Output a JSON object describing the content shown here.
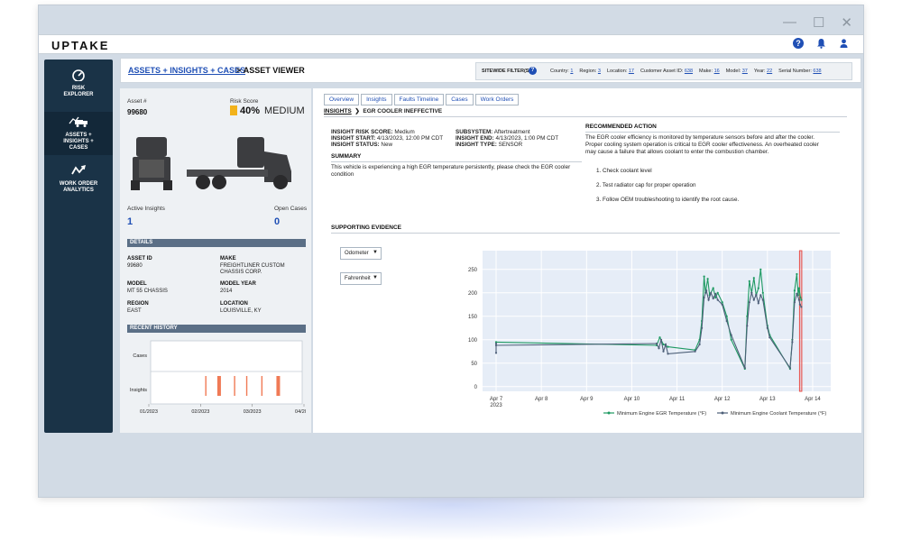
{
  "window": {
    "controls": [
      "—",
      "☐",
      "✕"
    ]
  },
  "topbar": {
    "logo": "UPTAKE",
    "icons": [
      "help-icon",
      "bell-icon",
      "user-icon"
    ]
  },
  "sidebar": {
    "items": [
      {
        "label_line1": "RISK",
        "label_line2": "EXPLORER",
        "label_line3": "",
        "icon": "gauge-icon",
        "active": false
      },
      {
        "label_line1": "ASSETS +",
        "label_line2": "INSIGHTS +",
        "label_line3": "CASES",
        "icon": "truck-icon",
        "active": true
      },
      {
        "label_line1": "WORK ORDER",
        "label_line2": "ANALYTICS",
        "label_line3": "",
        "icon": "trend-icon",
        "active": false
      }
    ]
  },
  "breadcrumb": {
    "link": "ASSETS + INSIGHTS + CASES",
    "separator": ">",
    "current": "ASSET VIEWER"
  },
  "filters": {
    "label": "SITEWIDE FILTER(S)",
    "items": [
      {
        "name": "Country:",
        "value": "1"
      },
      {
        "name": "Region:",
        "value": "3"
      },
      {
        "name": "Location:",
        "value": "17"
      },
      {
        "name": "Customer Asset ID:",
        "value": "638"
      },
      {
        "name": "Make:",
        "value": "16"
      },
      {
        "name": "Model:",
        "value": "37"
      },
      {
        "name": "Year:",
        "value": "22"
      },
      {
        "name": "Serial Number:",
        "value": "638"
      }
    ]
  },
  "asset": {
    "asset_label": "Asset #",
    "asset_number": "99680",
    "risk_label": "Risk Score",
    "risk_pct": "40%",
    "risk_level": "MEDIUM",
    "risk_color": "#f2b21b",
    "active_insights_label": "Active Insights",
    "active_insights": "1",
    "open_cases_label": "Open Cases",
    "open_cases": "0"
  },
  "details": {
    "header": "DETAILS",
    "asset_id_label": "ASSET ID",
    "asset_id": "99680",
    "make_label": "MAKE",
    "make_line1": "FREIGHTLINER CUSTOM",
    "make_line2": "CHASSIS CORP.",
    "model_label": "MODEL",
    "model": "MT 55 CHASSIS",
    "year_label": "MODEL YEAR",
    "year": "2014",
    "region_label": "REGION",
    "region": "EAST",
    "location_label": "LOCATION",
    "location": "LOUISVILLE, KY"
  },
  "history": {
    "header": "RECENT HISTORY",
    "row_labels": [
      "Cases",
      "Insights"
    ],
    "x_ticks": [
      "01/2023",
      "02/2023",
      "03/2023",
      "04/2023"
    ],
    "insight_marks": [
      {
        "t": 0.36,
        "bold": false
      },
      {
        "t": 0.44,
        "bold": true
      },
      {
        "t": 0.55,
        "bold": false
      },
      {
        "t": 0.63,
        "bold": false
      },
      {
        "t": 0.73,
        "bold": false
      },
      {
        "t": 0.83,
        "bold": true
      }
    ],
    "mark_color": "#f07a55"
  },
  "tabs": [
    "Overview",
    "Insights",
    "Faults Timeline",
    "Cases",
    "Work Orders"
  ],
  "insight_breadcrumb": {
    "link": "INSIGHTS",
    "current": "EGR COOLER INEFFECTIVE"
  },
  "insight": {
    "risk_label": "INSIGHT RISK SCORE:",
    "risk": "Medium",
    "start_label": "INSIGHT START:",
    "start": "4/13/2023, 12:00 PM CDT",
    "status_label": "INSIGHT STATUS:",
    "status": "New",
    "subsystem_label": "SUBSYSTEM:",
    "subsystem": "Aftertreatment",
    "end_label": "INSIGHT END:",
    "end": "4/13/2023, 1:00 PM CDT",
    "type_label": "INSIGHT TYPE:",
    "type": "SENSOR"
  },
  "summary": {
    "title": "SUMMARY",
    "line1": "This vehicle is experiencing a high EGR temperature persistently, please check the EGR cooler",
    "line2": "condition"
  },
  "recommended": {
    "title": "RECOMMENDED ACTION",
    "line1": "The EGR cooler efficiency is monitored by temperature sensors before and after the cooler.",
    "line2": "Proper cooling system operation is critical to EGR cooler effectiveness. An overheated cooler",
    "line3": "may cause a failure that allows coolant to enter the combustion chamber.",
    "steps": [
      "1. Check coolant level",
      "2. Test radiator cap for proper operation",
      "3. Follow OEM troubleshooting to identify the root cause."
    ]
  },
  "evidence": {
    "title": "SUPPORTING EVIDENCE",
    "select1": "Odometer",
    "select2": "Fahrenheit"
  },
  "chart_data": {
    "type": "line",
    "x_ticks": [
      "Apr 7",
      "Apr 8",
      "Apr 9",
      "Apr 10",
      "Apr 11",
      "Apr 12",
      "Apr 13",
      "Apr 14"
    ],
    "x_tick_sub": "2023",
    "xlim": [
      6.7,
      14.4
    ],
    "ylim": [
      -10,
      290
    ],
    "y_ticks": [
      0,
      50,
      100,
      150,
      200,
      250
    ],
    "highlight": {
      "from": 13.71,
      "to": 13.76,
      "color": "#e8504a"
    },
    "series": [
      {
        "name": "Minimum Engine EGR Temperature (°F)",
        "color": "#1e9a62",
        "points": [
          [
            7.0,
            95
          ],
          [
            10.55,
            88
          ],
          [
            10.62,
            105
          ],
          [
            10.7,
            90
          ],
          [
            10.8,
            85
          ],
          [
            11.4,
            78
          ],
          [
            11.5,
            100
          ],
          [
            11.55,
            140
          ],
          [
            11.6,
            235
          ],
          [
            11.63,
            200
          ],
          [
            11.68,
            230
          ],
          [
            11.72,
            195
          ],
          [
            11.8,
            210
          ],
          [
            11.85,
            190
          ],
          [
            11.9,
            200
          ],
          [
            12.0,
            180
          ],
          [
            12.1,
            150
          ],
          [
            12.2,
            100
          ],
          [
            12.5,
            38
          ],
          [
            12.55,
            150
          ],
          [
            12.6,
            225
          ],
          [
            12.65,
            200
          ],
          [
            12.7,
            232
          ],
          [
            12.75,
            195
          ],
          [
            12.8,
            210
          ],
          [
            12.85,
            250
          ],
          [
            12.9,
            200
          ],
          [
            13.0,
            130
          ],
          [
            13.05,
            110
          ],
          [
            13.5,
            38
          ],
          [
            13.55,
            100
          ],
          [
            13.6,
            205
          ],
          [
            13.65,
            240
          ],
          [
            13.68,
            195
          ],
          [
            13.7,
            210
          ],
          [
            13.73,
            190
          ],
          [
            13.75,
            185
          ]
        ]
      },
      {
        "name": "Minimum Engine Coolant Temperature (°F)",
        "color": "#4d5f78",
        "points": [
          [
            7.0,
            92
          ],
          [
            7.0,
            72
          ],
          [
            7.0,
            88
          ],
          [
            10.55,
            92
          ],
          [
            10.6,
            82
          ],
          [
            10.65,
            100
          ],
          [
            10.7,
            75
          ],
          [
            10.75,
            90
          ],
          [
            10.8,
            70
          ],
          [
            11.4,
            75
          ],
          [
            11.5,
            90
          ],
          [
            11.55,
            125
          ],
          [
            11.6,
            190
          ],
          [
            11.65,
            205
          ],
          [
            11.7,
            185
          ],
          [
            11.75,
            200
          ],
          [
            11.8,
            188
          ],
          [
            11.85,
            198
          ],
          [
            11.9,
            185
          ],
          [
            12.0,
            175
          ],
          [
            12.1,
            140
          ],
          [
            12.2,
            110
          ],
          [
            12.5,
            40
          ],
          [
            12.55,
            130
          ],
          [
            12.6,
            180
          ],
          [
            12.65,
            200
          ],
          [
            12.7,
            185
          ],
          [
            12.75,
            196
          ],
          [
            12.8,
            178
          ],
          [
            12.85,
            195
          ],
          [
            12.9,
            185
          ],
          [
            13.0,
            125
          ],
          [
            13.05,
            105
          ],
          [
            13.5,
            40
          ],
          [
            13.55,
            95
          ],
          [
            13.6,
            180
          ],
          [
            13.65,
            198
          ],
          [
            13.7,
            185
          ],
          [
            13.72,
            175
          ],
          [
            13.75,
            170
          ]
        ]
      }
    ]
  }
}
